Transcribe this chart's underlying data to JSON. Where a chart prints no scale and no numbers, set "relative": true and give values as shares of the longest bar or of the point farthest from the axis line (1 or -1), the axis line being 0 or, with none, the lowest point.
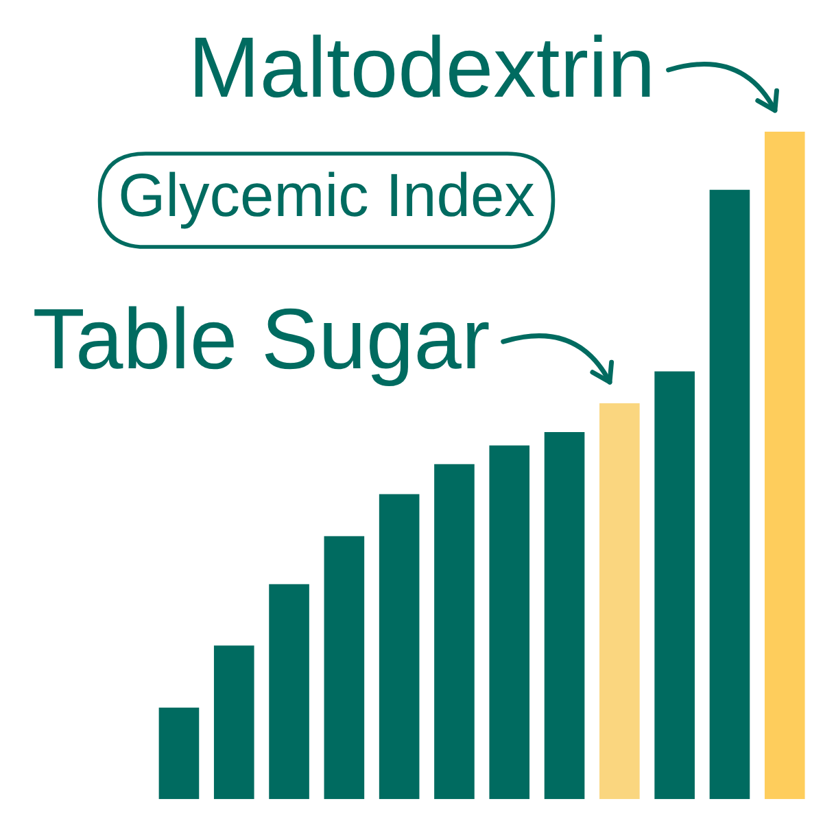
{
  "chart_data": {
    "type": "bar",
    "title": "Glycemic Index",
    "relative": true,
    "categories": [
      null,
      null,
      null,
      null,
      null,
      null,
      null,
      null,
      null,
      null,
      null,
      null
    ],
    "values": [
      0.137,
      0.23,
      0.322,
      0.394,
      0.457,
      0.502,
      0.53,
      0.55,
      0.593,
      0.641,
      0.913,
      1.0
    ],
    "colors": [
      "#006b60",
      "#006b60",
      "#006b60",
      "#006b60",
      "#006b60",
      "#006b60",
      "#006b60",
      "#006b60",
      "#fad67f",
      "#006b60",
      "#006b60",
      "#fecd5c"
    ],
    "annotations": [
      "Table Sugar",
      "Maltodextrin"
    ]
  }
}
